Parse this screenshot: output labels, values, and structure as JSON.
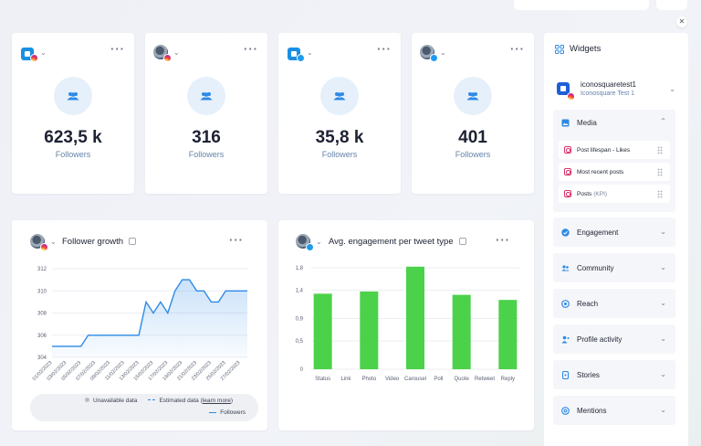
{
  "colors": {
    "accent": "#2d8ae6",
    "bar": "#4cd14a",
    "instagram": "#d6336c",
    "twitter": "#1d9bf0"
  },
  "kpi_cards": [
    {
      "account_icon": "iconosquare-logo",
      "network": "instagram",
      "value": "623,5 k",
      "label": "Followers"
    },
    {
      "account_icon": "user-avatar",
      "network": "instagram",
      "value": "316",
      "label": "Followers"
    },
    {
      "account_icon": "iconosquare-logo",
      "network": "twitter",
      "value": "35,8 k",
      "label": "Followers"
    },
    {
      "account_icon": "user-avatar",
      "network": "twitter",
      "value": "401",
      "label": "Followers"
    }
  ],
  "follower_growth": {
    "title": "Follower growth",
    "legend": {
      "unavailable": "Unavailable data",
      "estimated": "Estimated data",
      "learn_more": "learn more",
      "followers": "Followers"
    }
  },
  "engagement": {
    "title": "Avg. engagement per tweet type"
  },
  "chart_data": [
    {
      "type": "area",
      "title": "Follower growth",
      "x": [
        "01/02/2023",
        "02/02/2023",
        "03/02/2023",
        "04/02/2023",
        "05/02/2023",
        "06/02/2023",
        "07/02/2023",
        "08/02/2023",
        "09/02/2023",
        "10/02/2023",
        "11/02/2023",
        "12/02/2023",
        "13/02/2023",
        "14/02/2023",
        "15/02/2023",
        "16/02/2023",
        "17/02/2023",
        "18/02/2023",
        "19/02/2023",
        "20/02/2023",
        "21/02/2023",
        "22/02/2023",
        "23/02/2023",
        "24/02/2023",
        "25/02/2023",
        "26/02/2023",
        "27/02/2023",
        "28/02/2023"
      ],
      "x_ticks": [
        "01/02/2023",
        "03/02/2023",
        "05/02/2023",
        "07/02/2023",
        "09/02/2023",
        "11/02/2023",
        "13/02/2023",
        "15/02/2023",
        "17/02/2023",
        "19/02/2023",
        "21/02/2023",
        "23/02/2023",
        "25/02/2023",
        "27/02/2023"
      ],
      "series": [
        {
          "name": "Followers",
          "values": [
            305,
            305,
            305,
            305,
            305,
            306,
            306,
            306,
            306,
            306,
            306,
            306,
            306,
            309,
            308,
            309,
            308,
            310,
            311,
            311,
            310,
            310,
            309,
            309,
            310,
            310,
            310,
            310
          ]
        }
      ],
      "ylim": [
        304,
        312
      ],
      "yticks": [
        "304",
        "306",
        "308",
        "310",
        "312"
      ],
      "grid": true
    },
    {
      "type": "bar",
      "title": "Avg. engagement per tweet type",
      "categories": [
        "Status",
        "Link",
        "Photo",
        "Video",
        "Carousel",
        "Poll",
        "Quote",
        "Retweet",
        "Reply"
      ],
      "values": [
        1.34,
        0,
        1.38,
        0,
        1.82,
        0,
        1.32,
        0,
        1.23
      ],
      "ylim": [
        0,
        1.8
      ],
      "yticks": [
        "0",
        "0,5",
        "0,9",
        "1,4",
        "1,8"
      ],
      "grid": true
    }
  ],
  "widgets_panel": {
    "title": "Widgets",
    "account": {
      "name": "iconosquaretest1",
      "subtitle": "Iconosquare Test 1"
    },
    "media_section": {
      "label": "Media",
      "items": [
        {
          "label": "Post lifespan - Likes"
        },
        {
          "label": "Most recent posts"
        },
        {
          "label": "Posts",
          "tag": "(KPI)"
        }
      ]
    },
    "sections": [
      {
        "label": "Engagement",
        "icon": "engagement-icon"
      },
      {
        "label": "Community",
        "icon": "community-icon"
      },
      {
        "label": "Reach",
        "icon": "reach-icon"
      },
      {
        "label": "Profile activity",
        "icon": "profile-activity-icon"
      },
      {
        "label": "Stories",
        "icon": "stories-icon"
      },
      {
        "label": "Mentions",
        "icon": "mentions-icon"
      }
    ]
  }
}
